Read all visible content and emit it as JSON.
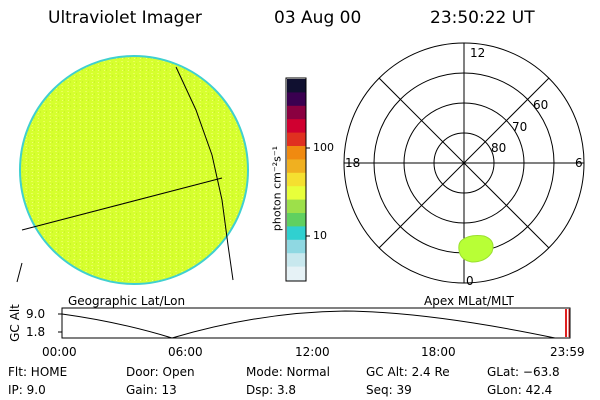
{
  "header": {
    "title": "Ultraviolet Imager",
    "date": "03 Aug 00",
    "time": "23:50:22 UT"
  },
  "colorbar": {
    "unit_label": "photon cm⁻²s⁻¹",
    "ticks": [
      "100",
      "10"
    ],
    "colors": [
      "#e6f2f6",
      "#c8e8ee",
      "#8fd8e2",
      "#30d0d0",
      "#60d060",
      "#9de04a",
      "#e8ff3a",
      "#f5e030",
      "#f0b020",
      "#f08a10",
      "#e03020",
      "#d00030",
      "#8a0040",
      "#3a0050",
      "#101030"
    ]
  },
  "left_panel": {
    "label": "Geographic Lat/Lon",
    "disk_color": "#d6ff2e",
    "disk_edge": "#40d0d0"
  },
  "right_panel": {
    "label": "Apex MLat/MLT",
    "mlt_labels": {
      "top": "12",
      "left": "18",
      "right": "6",
      "bottom": "0"
    },
    "mlat_labels": [
      "60",
      "70",
      "80"
    ],
    "blob_color": "#b8ff36"
  },
  "altitude_plot": {
    "ylabel": "GC Alt",
    "yticks": [
      "9.0",
      "1.8"
    ],
    "xticks": [
      "00:00",
      "06:00",
      "12:00",
      "18:00",
      "23:59"
    ],
    "marker_color": "#e02020"
  },
  "info": {
    "row1": {
      "flt": "Flt: HOME",
      "door": "Door: Open",
      "mode": "Mode: Normal",
      "gcalt": "GC Alt: 2.4 Re",
      "glat": "GLat: −63.8"
    },
    "row2": {
      "ip": "IP:  9.0",
      "gain": "Gain: 13",
      "dsp": "Dsp:    3.8",
      "seq": "Seq: 39",
      "glon": "GLon:  42.4"
    }
  }
}
